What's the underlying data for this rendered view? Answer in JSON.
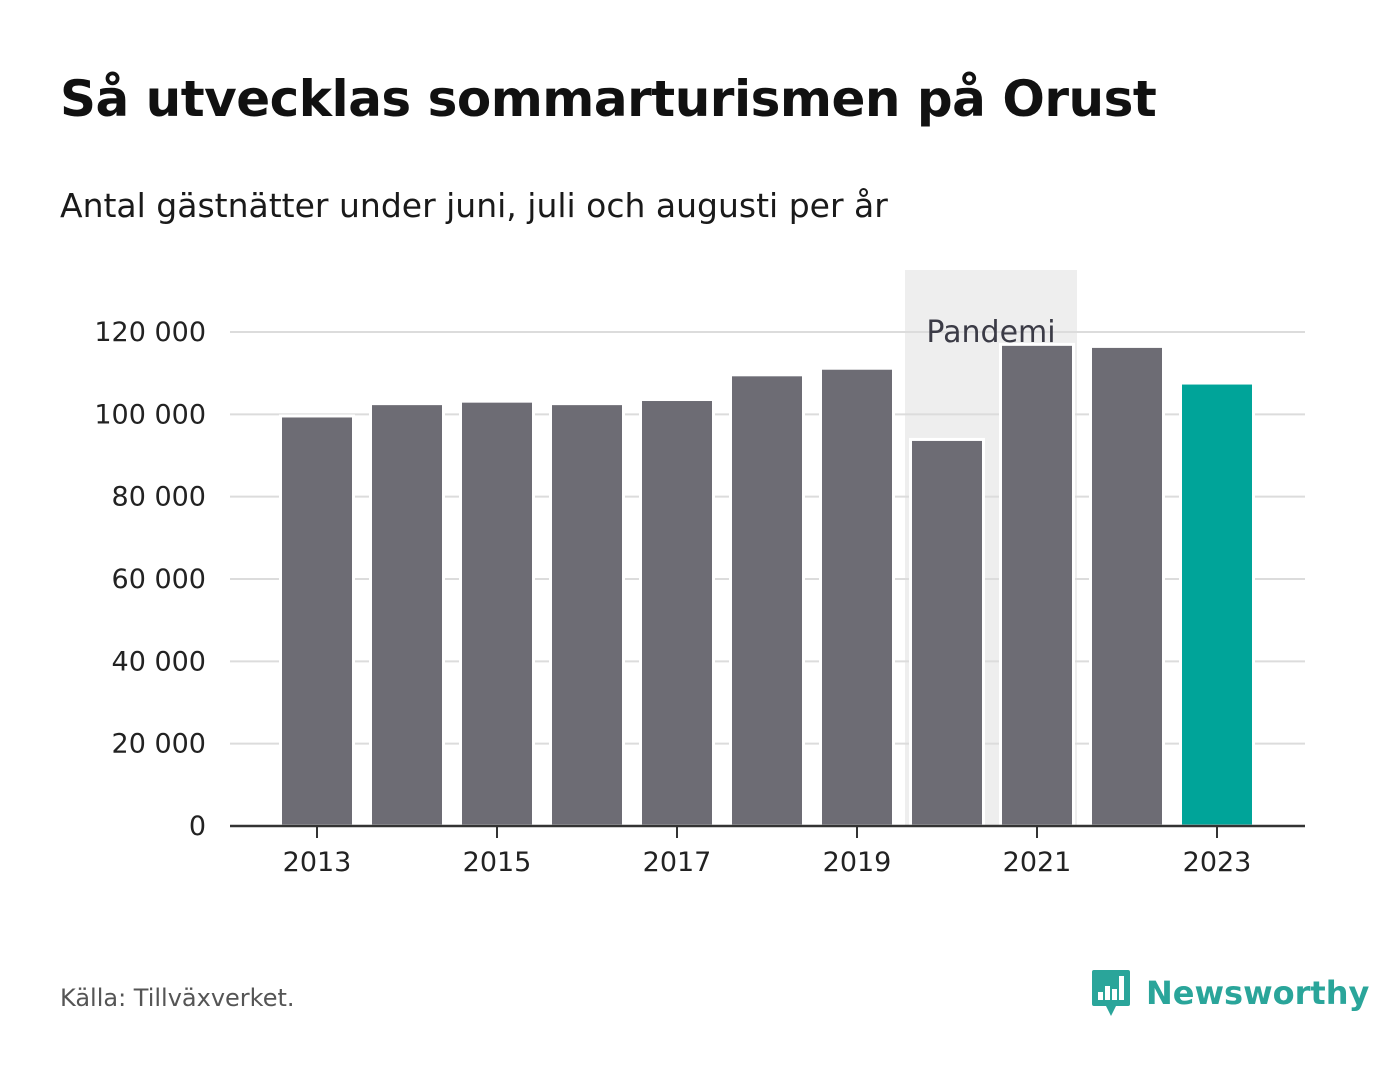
{
  "title": "Så utvecklas sommarturismen på Orust",
  "subtitle": "Antal gästnätter under juni, juli och augusti per år",
  "source": "Källa: Tillväxverket.",
  "brand": "Newsworthy",
  "chart_data": {
    "type": "bar",
    "categories": [
      "2013",
      "2014",
      "2015",
      "2016",
      "2017",
      "2018",
      "2019",
      "2020",
      "2021",
      "2022",
      "2023"
    ],
    "values": [
      99600,
      102600,
      103200,
      102600,
      103600,
      109600,
      111200,
      93900,
      117000,
      116500,
      107600
    ],
    "x_tick_labels": [
      "2013",
      "2015",
      "2017",
      "2019",
      "2021",
      "2023"
    ],
    "y_ticks": [
      0,
      20000,
      40000,
      60000,
      80000,
      100000,
      120000
    ],
    "y_tick_labels": [
      "0",
      "20 000",
      "40 000",
      "60 000",
      "80 000",
      "100 000",
      "120 000"
    ],
    "ylim": [
      0,
      120000
    ],
    "grid": true,
    "colors": {
      "default": "#6d6c74",
      "highlight": "#00a499",
      "highlight_category": "2023",
      "shade": "#eeeeee"
    },
    "annotation": {
      "label": "Pandemi",
      "category": "2020"
    }
  }
}
